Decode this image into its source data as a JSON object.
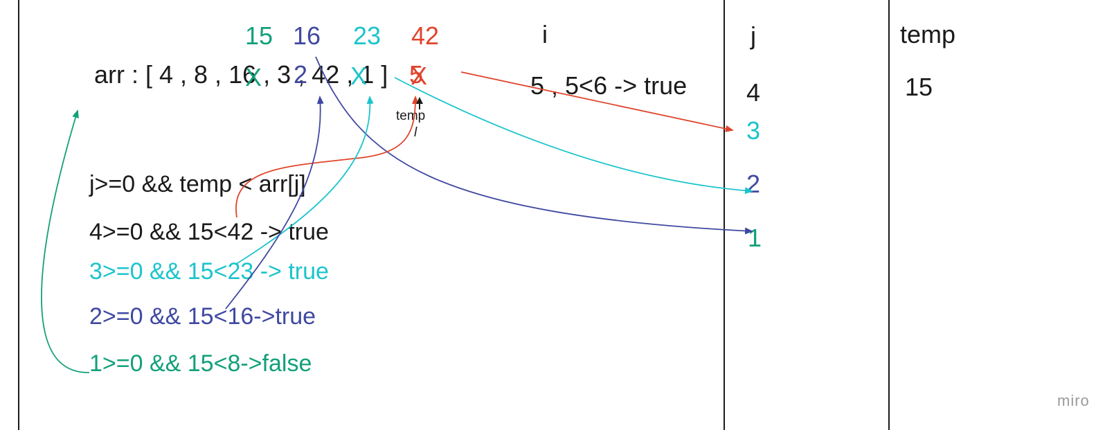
{
  "colors": {
    "text": "#1a1a1a",
    "green": "#12a07a",
    "blue": "#3f48a0",
    "cyan": "#1cc4cc",
    "red": "#e0442c",
    "watermark": "#9a9a9a"
  },
  "header_values": {
    "v15": "15",
    "v16": "16",
    "v23": "23",
    "v42": "42"
  },
  "array": {
    "prefix": "arr : [ 4 , 8 , 1",
    "seg1": "6 , ",
    "seg2": "3 , 4",
    "seg3": "2 , 1",
    "seg4": " ]",
    "strike_green": "X",
    "strike_blue": "2",
    "strike_cyan": "X",
    "strike_red": "5",
    "strike_red_overlay": "X"
  },
  "temp_note": {
    "label": "temp",
    "marker": "l"
  },
  "columns": {
    "i_header": "i",
    "j_header": "j",
    "temp_header": "temp"
  },
  "i_column": {
    "entry": "5 , 5<6 -> true"
  },
  "j_column": {
    "j4": "4",
    "j3": "3",
    "j2": "2",
    "j1": "1"
  },
  "temp_column": {
    "value": "15"
  },
  "conditions": {
    "header": "j>=0 && temp < arr[j]",
    "line4": "4>=0 && 15<42  -> true",
    "line3": "3>=0 && 15<23  -> true",
    "line2": "2>=0 && 15<16->true",
    "line1": "1>=0 && 15<8->false"
  },
  "watermark": "miro"
}
